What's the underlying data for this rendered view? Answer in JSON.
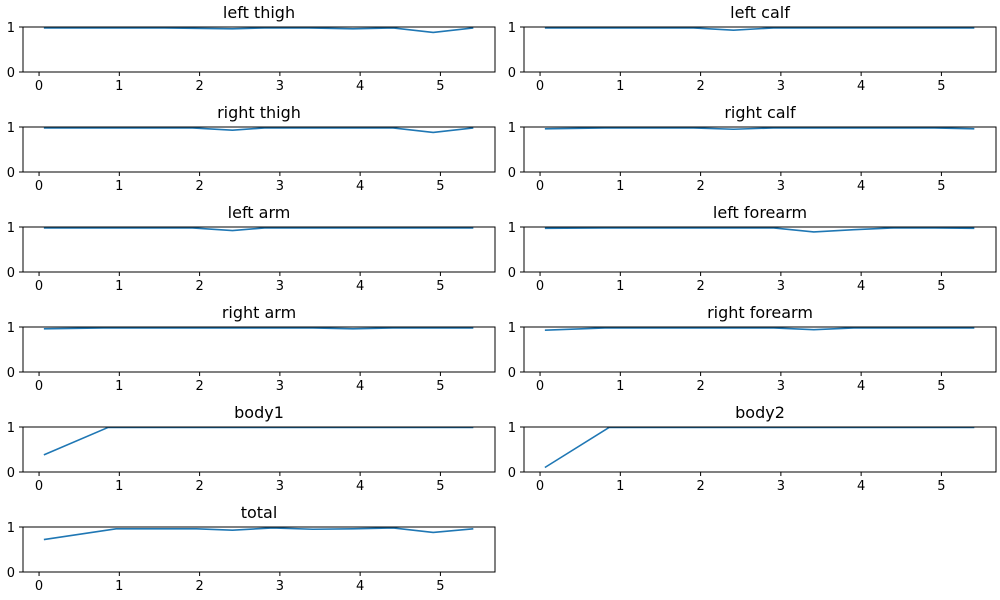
{
  "colors": {
    "series": "#1f77b4",
    "axes": "#000000",
    "background": "#ffffff"
  },
  "chart_data": [
    {
      "type": "line",
      "title": "left thigh",
      "xlim": [
        -0.2,
        5.68
      ],
      "ylim": [
        0,
        1
      ],
      "x_ticks": [
        0,
        1,
        2,
        3,
        4,
        5
      ],
      "y_ticks": [
        0,
        1
      ],
      "x": [
        0.06,
        0.81,
        1.56,
        2.41,
        2.81,
        3.36,
        3.91,
        4.41,
        4.91,
        5.41
      ],
      "y": [
        0.98,
        0.98,
        0.98,
        0.96,
        0.98,
        0.98,
        0.96,
        0.98,
        0.88,
        0.98
      ]
    },
    {
      "type": "line",
      "title": "left calf",
      "xlim": [
        -0.2,
        5.68
      ],
      "ylim": [
        0,
        1
      ],
      "x_ticks": [
        0,
        1,
        2,
        3,
        4,
        5
      ],
      "y_ticks": [
        0,
        1
      ],
      "x": [
        0.06,
        0.81,
        1.56,
        1.91,
        2.41,
        2.91,
        3.41,
        3.91,
        4.41,
        4.91,
        5.41
      ],
      "y": [
        0.98,
        0.98,
        0.98,
        0.98,
        0.93,
        0.98,
        0.98,
        0.98,
        0.98,
        0.98,
        0.98
      ]
    },
    {
      "type": "line",
      "title": "right thigh",
      "xlim": [
        -0.2,
        5.68
      ],
      "ylim": [
        0,
        1
      ],
      "x_ticks": [
        0,
        1,
        2,
        3,
        4,
        5
      ],
      "y_ticks": [
        0,
        1
      ],
      "x": [
        0.06,
        0.81,
        1.56,
        1.91,
        2.41,
        2.81,
        3.36,
        3.91,
        4.41,
        4.91,
        5.41
      ],
      "y": [
        0.98,
        0.98,
        0.98,
        0.98,
        0.93,
        0.98,
        0.98,
        0.98,
        0.98,
        0.88,
        0.98
      ]
    },
    {
      "type": "line",
      "title": "right calf",
      "xlim": [
        -0.2,
        5.68
      ],
      "ylim": [
        0,
        1
      ],
      "x_ticks": [
        0,
        1,
        2,
        3,
        4,
        5
      ],
      "y_ticks": [
        0,
        1
      ],
      "x": [
        0.06,
        0.81,
        1.56,
        1.91,
        2.41,
        2.91,
        3.41,
        3.91,
        4.41,
        4.91,
        5.41
      ],
      "y": [
        0.96,
        0.98,
        0.98,
        0.98,
        0.95,
        0.98,
        0.98,
        0.98,
        0.98,
        0.98,
        0.96
      ]
    },
    {
      "type": "line",
      "title": "left arm",
      "xlim": [
        -0.2,
        5.68
      ],
      "ylim": [
        0,
        1
      ],
      "x_ticks": [
        0,
        1,
        2,
        3,
        4,
        5
      ],
      "y_ticks": [
        0,
        1
      ],
      "x": [
        0.06,
        0.81,
        1.56,
        1.91,
        2.41,
        2.81,
        3.36,
        3.91,
        4.41,
        4.91,
        5.41
      ],
      "y": [
        0.98,
        0.98,
        0.98,
        0.98,
        0.92,
        0.98,
        0.98,
        0.98,
        0.98,
        0.98,
        0.98
      ]
    },
    {
      "type": "line",
      "title": "left forearm",
      "xlim": [
        -0.2,
        5.68
      ],
      "ylim": [
        0,
        1
      ],
      "x_ticks": [
        0,
        1,
        2,
        3,
        4,
        5
      ],
      "y_ticks": [
        0,
        1
      ],
      "x": [
        0.06,
        0.81,
        1.56,
        2.41,
        2.91,
        3.41,
        3.91,
        4.41,
        4.91,
        5.41
      ],
      "y": [
        0.97,
        0.98,
        0.98,
        0.98,
        0.98,
        0.89,
        0.94,
        0.98,
        0.98,
        0.97
      ]
    },
    {
      "type": "line",
      "title": "right arm",
      "xlim": [
        -0.2,
        5.68
      ],
      "ylim": [
        0,
        1
      ],
      "x_ticks": [
        0,
        1,
        2,
        3,
        4,
        5
      ],
      "y_ticks": [
        0,
        1
      ],
      "x": [
        0.06,
        0.81,
        1.56,
        2.41,
        2.91,
        3.41,
        3.91,
        4.41,
        4.91,
        5.41
      ],
      "y": [
        0.96,
        0.98,
        0.98,
        0.98,
        0.98,
        0.98,
        0.96,
        0.98,
        0.98,
        0.98
      ]
    },
    {
      "type": "line",
      "title": "right forearm",
      "xlim": [
        -0.2,
        5.68
      ],
      "ylim": [
        0,
        1
      ],
      "x_ticks": [
        0,
        1,
        2,
        3,
        4,
        5
      ],
      "y_ticks": [
        0,
        1
      ],
      "x": [
        0.06,
        0.81,
        1.56,
        2.41,
        2.91,
        3.41,
        3.91,
        4.41,
        4.91,
        5.41
      ],
      "y": [
        0.93,
        0.98,
        0.98,
        0.98,
        0.98,
        0.94,
        0.98,
        0.98,
        0.98,
        0.98
      ]
    },
    {
      "type": "line",
      "title": "body1",
      "xlim": [
        -0.2,
        5.68
      ],
      "ylim": [
        0,
        1
      ],
      "x_ticks": [
        0,
        1,
        2,
        3,
        4,
        5
      ],
      "y_ticks": [
        0,
        1
      ],
      "x": [
        0.06,
        0.86,
        1.56,
        2.41,
        2.91,
        3.41,
        3.91,
        4.41,
        4.91,
        5.41
      ],
      "y": [
        0.38,
        0.99,
        0.99,
        0.99,
        0.99,
        0.99,
        0.99,
        0.99,
        0.99,
        0.99
      ]
    },
    {
      "type": "line",
      "title": "body2",
      "xlim": [
        -0.2,
        5.68
      ],
      "ylim": [
        0,
        1
      ],
      "x_ticks": [
        0,
        1,
        2,
        3,
        4,
        5
      ],
      "y_ticks": [
        0,
        1
      ],
      "x": [
        0.06,
        0.86,
        1.56,
        2.41,
        2.91,
        3.41,
        3.91,
        4.41,
        4.91,
        5.41
      ],
      "y": [
        0.1,
        0.99,
        0.99,
        0.99,
        0.99,
        0.99,
        0.99,
        0.99,
        0.99,
        0.99
      ]
    },
    {
      "type": "line",
      "title": "total",
      "xlim": [
        -0.2,
        5.68
      ],
      "ylim": [
        0,
        1
      ],
      "x_ticks": [
        0,
        1,
        2,
        3,
        4,
        5
      ],
      "y_ticks": [
        0,
        1
      ],
      "x": [
        0.06,
        0.96,
        1.96,
        2.41,
        2.91,
        3.41,
        3.91,
        4.41,
        4.91,
        5.41
      ],
      "y": [
        0.72,
        0.96,
        0.96,
        0.93,
        0.98,
        0.95,
        0.96,
        0.98,
        0.88,
        0.96
      ]
    }
  ]
}
